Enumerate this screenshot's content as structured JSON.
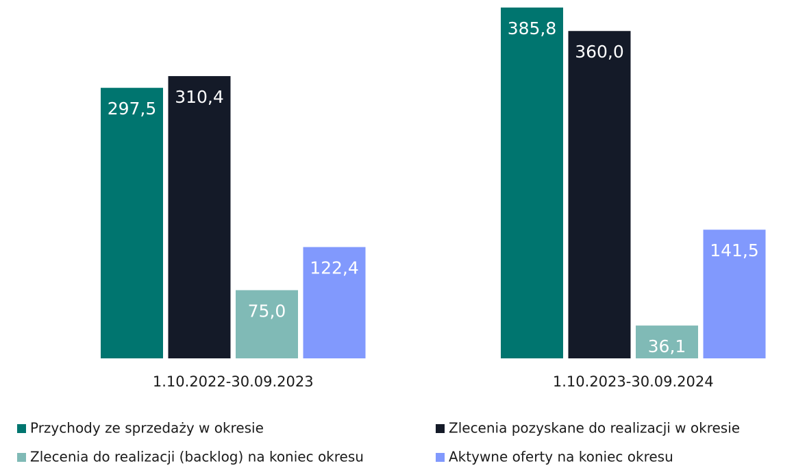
{
  "chart_data": {
    "type": "bar",
    "categories": [
      "1.10.2022-30.09.2023",
      "1.10.2023-30.09.2024"
    ],
    "series": [
      {
        "name": "Przychody ze sprzedaży w okresie",
        "color": "#00756f",
        "values": [
          297.5,
          385.8
        ],
        "value_labels": [
          "297,5",
          "385,8"
        ]
      },
      {
        "name": "Zlecenia pozyskane do realizacji w okresie",
        "color": "#141a28",
        "values": [
          310.4,
          360.0
        ],
        "value_labels": [
          "310,4",
          "360,0"
        ]
      },
      {
        "name": "Zlecenia do realizacji (backlog) na koniec okresu",
        "color": "#80bab6",
        "values": [
          75.0,
          36.1
        ],
        "value_labels": [
          "75,0",
          "36,1"
        ]
      },
      {
        "name": "Aktywne oferty na koniec okresu",
        "color": "#8199fd",
        "values": [
          122.4,
          141.5
        ],
        "value_labels": [
          "122,4",
          "141,5"
        ]
      }
    ]
  }
}
